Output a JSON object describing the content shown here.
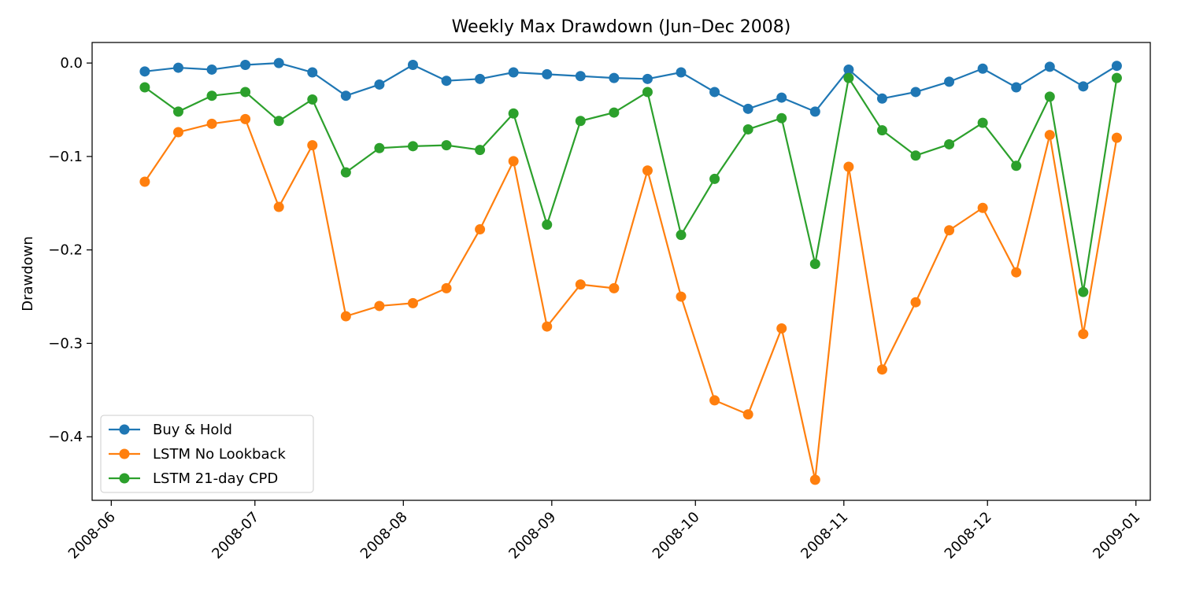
{
  "chart_data": {
    "type": "line",
    "title": "Weekly Max Drawdown (Jun–Dec 2008)",
    "xlabel": "",
    "ylabel": "Drawdown",
    "x_axis_type": "date",
    "xlim": [
      "2008-05-28",
      "2009-01-04"
    ],
    "ylim": [
      -0.468,
      0.022
    ],
    "xticks": [
      "2008-06-01",
      "2008-07-01",
      "2008-08-01",
      "2008-09-01",
      "2008-10-01",
      "2008-11-01",
      "2008-12-01",
      "2009-01-01"
    ],
    "xtick_labels": [
      "2008-06",
      "2008-07",
      "2008-08",
      "2008-09",
      "2008-10",
      "2008-11",
      "2008-12",
      "2009-01"
    ],
    "yticks": [
      0.0,
      -0.1,
      -0.2,
      -0.3,
      -0.4
    ],
    "ytick_labels": [
      "0.0",
      "−0.1",
      "−0.2",
      "−0.3",
      "−0.4"
    ],
    "grid": false,
    "legend_position": "lower-left",
    "x": [
      "2008-06-08",
      "2008-06-15",
      "2008-06-22",
      "2008-06-29",
      "2008-07-06",
      "2008-07-13",
      "2008-07-20",
      "2008-07-27",
      "2008-08-03",
      "2008-08-10",
      "2008-08-17",
      "2008-08-24",
      "2008-08-31",
      "2008-09-07",
      "2008-09-14",
      "2008-09-21",
      "2008-09-28",
      "2008-10-05",
      "2008-10-12",
      "2008-10-19",
      "2008-10-26",
      "2008-11-02",
      "2008-11-09",
      "2008-11-16",
      "2008-11-23",
      "2008-11-30",
      "2008-12-07",
      "2008-12-14",
      "2008-12-21",
      "2008-12-28"
    ],
    "series": [
      {
        "name": "Buy & Hold",
        "color": "#1f77b4",
        "values": [
          -0.009,
          -0.005,
          -0.007,
          -0.002,
          0.0,
          -0.01,
          -0.035,
          -0.023,
          -0.002,
          -0.019,
          -0.017,
          -0.01,
          -0.012,
          -0.014,
          -0.016,
          -0.017,
          -0.01,
          -0.031,
          -0.049,
          -0.037,
          -0.052,
          -0.007,
          -0.038,
          -0.031,
          -0.02,
          -0.006,
          -0.026,
          -0.004,
          -0.025,
          -0.003
        ]
      },
      {
        "name": "LSTM No Lookback",
        "color": "#ff7f0e",
        "values": [
          -0.127,
          -0.074,
          -0.065,
          -0.06,
          -0.154,
          -0.088,
          -0.271,
          -0.26,
          -0.257,
          -0.241,
          -0.178,
          -0.105,
          -0.282,
          -0.237,
          -0.241,
          -0.115,
          -0.25,
          -0.361,
          -0.376,
          -0.284,
          -0.446,
          -0.111,
          -0.328,
          -0.256,
          -0.179,
          -0.155,
          -0.224,
          -0.077,
          -0.29,
          -0.08
        ]
      },
      {
        "name": "LSTM 21-day CPD",
        "color": "#2ca02c",
        "values": [
          -0.026,
          -0.052,
          -0.035,
          -0.031,
          -0.062,
          -0.039,
          -0.117,
          -0.091,
          -0.089,
          -0.088,
          -0.093,
          -0.054,
          -0.173,
          -0.062,
          -0.053,
          -0.031,
          -0.184,
          -0.124,
          -0.071,
          -0.059,
          -0.215,
          -0.016,
          -0.072,
          -0.099,
          -0.087,
          -0.064,
          -0.11,
          -0.036,
          -0.245,
          -0.016
        ]
      }
    ]
  }
}
